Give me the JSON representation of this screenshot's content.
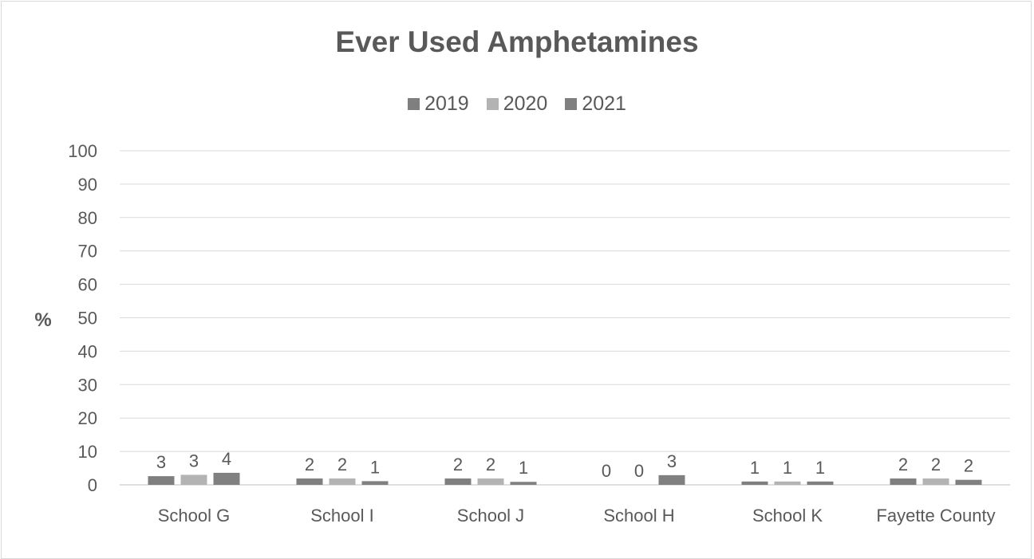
{
  "chart_data": {
    "type": "bar",
    "title": "Ever Used Amphetamines",
    "ylabel": "%",
    "xlabel": "",
    "ylim": [
      0,
      100
    ],
    "yticks": [
      0,
      10,
      20,
      30,
      40,
      50,
      60,
      70,
      80,
      90,
      100
    ],
    "grid": true,
    "legend_position": "top",
    "categories": [
      "School G",
      "School I",
      "School J",
      "School H",
      "School K",
      "Fayette County"
    ],
    "series": [
      {
        "name": "2019",
        "color": "#7f7f7f",
        "values": [
          2.6,
          1.9,
          1.9,
          0,
          1.0,
          1.9
        ],
        "labels": [
          "3",
          "2",
          "2",
          "0",
          "1",
          "2"
        ]
      },
      {
        "name": "2020",
        "color": "#b3b3b3",
        "values": [
          3.0,
          1.9,
          1.9,
          0,
          1.0,
          1.9
        ],
        "labels": [
          "3",
          "2",
          "2",
          "0",
          "1",
          "2"
        ]
      },
      {
        "name": "2021",
        "color": "#808080",
        "values": [
          3.6,
          1.1,
          0.9,
          2.9,
          1.0,
          1.5
        ],
        "labels": [
          "4",
          "1",
          "1",
          "3",
          "1",
          "2"
        ]
      }
    ]
  }
}
